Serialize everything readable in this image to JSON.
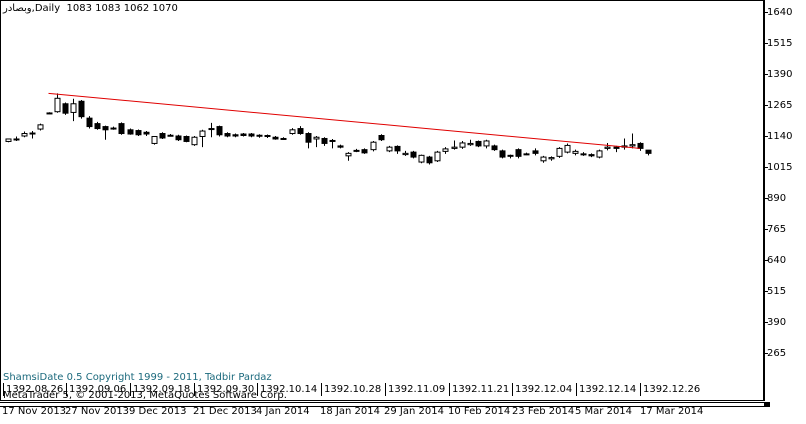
{
  "header": {
    "symbol": "وبصادر",
    "timeframe": "Daily",
    "ohlc": "1083 1083 1062 1070"
  },
  "copyright": {
    "shamsi": "ShamsiDate 0.5 Copyright 1999 - 2011, Tadbir Pardaz",
    "metaquotes": "MetaTrader 5, © 2001-2013, MetaQuotes Software Corp."
  },
  "shamsi_dates": [
    "1392.08.26",
    "1392.09.06",
    "1392.09.18",
    "1392.09.30",
    "1392.10.14",
    "1392.10.28",
    "1392.11.09",
    "1392.11.21",
    "1392.12.04",
    "1392.12.14",
    "1392.12.26"
  ],
  "gregorian_dates": [
    "17 Nov 2013",
    "27 Nov 2013",
    "9 Dec 2013",
    "21 Dec 2013",
    "4 Jan 2014",
    "18 Jan 2014",
    "29 Jan 2014",
    "10 Feb 2014",
    "23 Feb 2014",
    "5 Mar 2014",
    "17 Mar 2014"
  ],
  "colors": {
    "trendline": "#e00000",
    "bull_body": "#ffffff",
    "bear_body": "#000000",
    "copyright_text": "#1c6a7d"
  },
  "chart_data": {
    "type": "candlestick",
    "ylim": [
      205,
      1670
    ],
    "yticks": [
      1640,
      1515,
      1390,
      1265,
      1140,
      1015,
      890,
      765,
      640,
      515,
      390,
      265
    ],
    "candles": [
      {
        "o": 1118,
        "h": 1130,
        "l": 1115,
        "c": 1128
      },
      {
        "o": 1128,
        "h": 1138,
        "l": 1120,
        "c": 1126
      },
      {
        "o": 1140,
        "h": 1158,
        "l": 1135,
        "c": 1150
      },
      {
        "o": 1150,
        "h": 1160,
        "l": 1130,
        "c": 1152
      },
      {
        "o": 1168,
        "h": 1190,
        "l": 1162,
        "c": 1185
      },
      {
        "o": 1232,
        "h": 1236,
        "l": 1228,
        "c": 1233
      },
      {
        "o": 1238,
        "h": 1312,
        "l": 1234,
        "c": 1292
      },
      {
        "o": 1270,
        "h": 1275,
        "l": 1225,
        "c": 1232
      },
      {
        "o": 1235,
        "h": 1290,
        "l": 1200,
        "c": 1270
      },
      {
        "o": 1280,
        "h": 1285,
        "l": 1210,
        "c": 1218
      },
      {
        "o": 1212,
        "h": 1220,
        "l": 1170,
        "c": 1178
      },
      {
        "o": 1190,
        "h": 1197,
        "l": 1165,
        "c": 1170
      },
      {
        "o": 1178,
        "h": 1182,
        "l": 1125,
        "c": 1165
      },
      {
        "o": 1172,
        "h": 1178,
        "l": 1165,
        "c": 1172
      },
      {
        "o": 1190,
        "h": 1195,
        "l": 1145,
        "c": 1150
      },
      {
        "o": 1165,
        "h": 1170,
        "l": 1145,
        "c": 1148
      },
      {
        "o": 1162,
        "h": 1166,
        "l": 1140,
        "c": 1145
      },
      {
        "o": 1155,
        "h": 1160,
        "l": 1140,
        "c": 1148
      },
      {
        "o": 1110,
        "h": 1140,
        "l": 1105,
        "c": 1138
      },
      {
        "o": 1150,
        "h": 1155,
        "l": 1128,
        "c": 1132
      },
      {
        "o": 1143,
        "h": 1148,
        "l": 1138,
        "c": 1143
      },
      {
        "o": 1140,
        "h": 1145,
        "l": 1120,
        "c": 1125
      },
      {
        "o": 1138,
        "h": 1142,
        "l": 1115,
        "c": 1118
      },
      {
        "o": 1105,
        "h": 1140,
        "l": 1100,
        "c": 1135
      },
      {
        "o": 1138,
        "h": 1165,
        "l": 1095,
        "c": 1160
      },
      {
        "o": 1170,
        "h": 1193,
        "l": 1135,
        "c": 1170
      },
      {
        "o": 1178,
        "h": 1182,
        "l": 1138,
        "c": 1145
      },
      {
        "o": 1150,
        "h": 1155,
        "l": 1135,
        "c": 1140
      },
      {
        "o": 1145,
        "h": 1150,
        "l": 1135,
        "c": 1140
      },
      {
        "o": 1148,
        "h": 1152,
        "l": 1138,
        "c": 1142
      },
      {
        "o": 1148,
        "h": 1152,
        "l": 1135,
        "c": 1140
      },
      {
        "o": 1143,
        "h": 1147,
        "l": 1133,
        "c": 1140
      },
      {
        "o": 1142,
        "h": 1146,
        "l": 1132,
        "c": 1138
      },
      {
        "o": 1135,
        "h": 1140,
        "l": 1125,
        "c": 1128
      },
      {
        "o": 1130,
        "h": 1135,
        "l": 1125,
        "c": 1130
      },
      {
        "o": 1150,
        "h": 1172,
        "l": 1145,
        "c": 1165
      },
      {
        "o": 1170,
        "h": 1180,
        "l": 1145,
        "c": 1150
      },
      {
        "o": 1150,
        "h": 1155,
        "l": 1090,
        "c": 1115
      },
      {
        "o": 1128,
        "h": 1140,
        "l": 1095,
        "c": 1135
      },
      {
        "o": 1130,
        "h": 1135,
        "l": 1100,
        "c": 1110
      },
      {
        "o": 1122,
        "h": 1128,
        "l": 1090,
        "c": 1120
      },
      {
        "o": 1100,
        "h": 1105,
        "l": 1090,
        "c": 1095
      },
      {
        "o": 1060,
        "h": 1075,
        "l": 1040,
        "c": 1070
      },
      {
        "o": 1082,
        "h": 1088,
        "l": 1075,
        "c": 1080
      },
      {
        "o": 1085,
        "h": 1090,
        "l": 1068,
        "c": 1072
      },
      {
        "o": 1085,
        "h": 1120,
        "l": 1078,
        "c": 1115
      },
      {
        "o": 1142,
        "h": 1147,
        "l": 1120,
        "c": 1125
      },
      {
        "o": 1080,
        "h": 1100,
        "l": 1075,
        "c": 1095
      },
      {
        "o": 1098,
        "h": 1102,
        "l": 1068,
        "c": 1080
      },
      {
        "o": 1065,
        "h": 1080,
        "l": 1060,
        "c": 1070
      },
      {
        "o": 1075,
        "h": 1080,
        "l": 1050,
        "c": 1055
      },
      {
        "o": 1035,
        "h": 1065,
        "l": 1030,
        "c": 1062
      },
      {
        "o": 1055,
        "h": 1060,
        "l": 1025,
        "c": 1032
      },
      {
        "o": 1040,
        "h": 1080,
        "l": 1035,
        "c": 1075
      },
      {
        "o": 1078,
        "h": 1095,
        "l": 1068,
        "c": 1088
      },
      {
        "o": 1090,
        "h": 1122,
        "l": 1085,
        "c": 1095
      },
      {
        "o": 1095,
        "h": 1120,
        "l": 1088,
        "c": 1112
      },
      {
        "o": 1105,
        "h": 1125,
        "l": 1100,
        "c": 1110
      },
      {
        "o": 1118,
        "h": 1122,
        "l": 1095,
        "c": 1100
      },
      {
        "o": 1100,
        "h": 1125,
        "l": 1090,
        "c": 1120
      },
      {
        "o": 1100,
        "h": 1105,
        "l": 1080,
        "c": 1085
      },
      {
        "o": 1080,
        "h": 1085,
        "l": 1050,
        "c": 1055
      },
      {
        "o": 1062,
        "h": 1065,
        "l": 1050,
        "c": 1058
      },
      {
        "o": 1085,
        "h": 1090,
        "l": 1050,
        "c": 1058
      },
      {
        "o": 1068,
        "h": 1073,
        "l": 1063,
        "c": 1068
      },
      {
        "o": 1080,
        "h": 1090,
        "l": 1062,
        "c": 1070
      },
      {
        "o": 1040,
        "h": 1060,
        "l": 1032,
        "c": 1055
      },
      {
        "o": 1048,
        "h": 1058,
        "l": 1040,
        "c": 1053
      },
      {
        "o": 1058,
        "h": 1095,
        "l": 1052,
        "c": 1090
      },
      {
        "o": 1075,
        "h": 1110,
        "l": 1070,
        "c": 1102
      },
      {
        "o": 1070,
        "h": 1085,
        "l": 1062,
        "c": 1078
      },
      {
        "o": 1068,
        "h": 1075,
        "l": 1060,
        "c": 1068
      },
      {
        "o": 1065,
        "h": 1070,
        "l": 1055,
        "c": 1060
      },
      {
        "o": 1055,
        "h": 1085,
        "l": 1050,
        "c": 1080
      },
      {
        "o": 1090,
        "h": 1112,
        "l": 1082,
        "c": 1095
      },
      {
        "o": 1095,
        "h": 1100,
        "l": 1075,
        "c": 1090
      },
      {
        "o": 1095,
        "h": 1130,
        "l": 1085,
        "c": 1100
      },
      {
        "o": 1100,
        "h": 1150,
        "l": 1090,
        "c": 1105
      },
      {
        "o": 1110,
        "h": 1115,
        "l": 1080,
        "c": 1090
      },
      {
        "o": 1083,
        "h": 1083,
        "l": 1062,
        "c": 1070
      }
    ],
    "trendline": {
      "from": {
        "bar": 5,
        "price": 1312
      },
      "to": {
        "bar": 78,
        "price": 1090
      }
    }
  }
}
